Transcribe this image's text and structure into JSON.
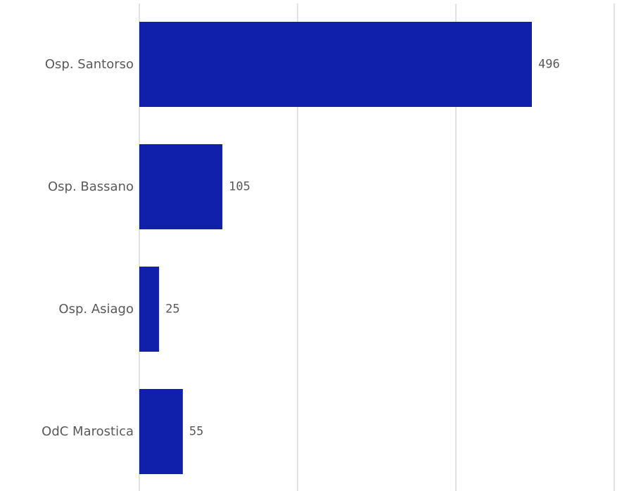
{
  "chart_data": {
    "type": "bar",
    "orientation": "horizontal",
    "categories": [
      "Osp. Santorso",
      "Osp. Bassano",
      "Osp. Asiago",
      "OdC Marostica"
    ],
    "values": [
      496,
      105,
      25,
      55
    ],
    "xlim": [
      0,
      600
    ],
    "grid": true,
    "colors": {
      "bar": "#1020aa",
      "grid": "#d9d9d9",
      "text": "#595959"
    }
  }
}
